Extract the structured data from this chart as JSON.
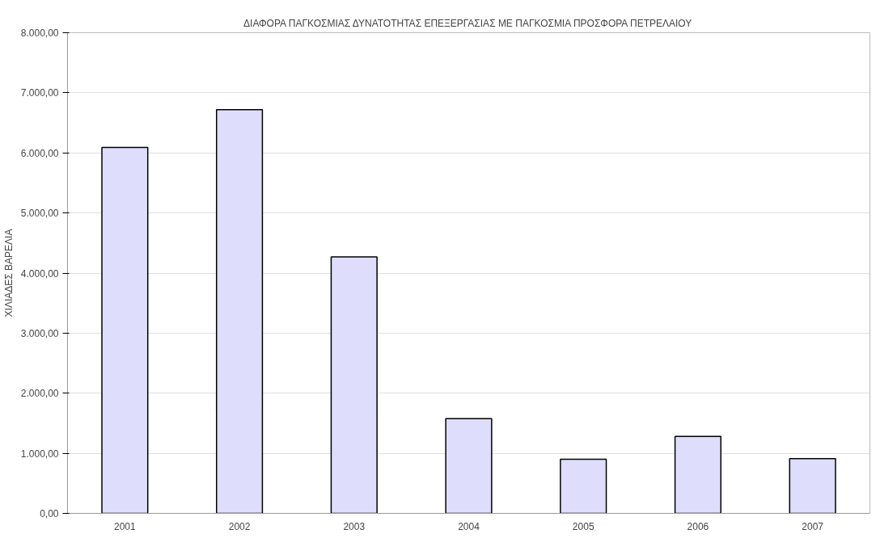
{
  "chart_data": {
    "type": "bar",
    "title": "ΔΙΑΦΟΡΑ ΠΑΓΚΟΣΜΙΑΣ ΔΥΝΑΤΟΤΗΤΑΣ ΕΠΕΞΕΡΓΑΣΙΑΣ ΜΕ ΠΑΓΚΟΣΜΙΑ ΠΡΟΣΦΟΡΑ ΠΕΤΡΕΛΑΙΟΥ",
    "ylabel": "ΧΙΛΙΑΔΕΣ ΒΑΡΕΛΙΑ",
    "categories": [
      "2001",
      "2002",
      "2003",
      "2004",
      "2005",
      "2006",
      "2007"
    ],
    "values": [
      6090,
      6720,
      4270,
      1575,
      900,
      1280,
      910
    ],
    "color": "#dedefc",
    "ylim": [
      0,
      8000
    ],
    "yticks": [
      {
        "value": 0,
        "label": "0,00"
      },
      {
        "value": 1000,
        "label": "1.000,00"
      },
      {
        "value": 2000,
        "label": "2.000,00"
      },
      {
        "value": 3000,
        "label": "3.000,00"
      },
      {
        "value": 4000,
        "label": "4.000,00"
      },
      {
        "value": 5000,
        "label": "5.000,00"
      },
      {
        "value": 6000,
        "label": "6.000,00"
      },
      {
        "value": 7000,
        "label": "7.000,00"
      },
      {
        "value": 8000,
        "label": "8.000,00"
      }
    ],
    "grid": "y"
  }
}
